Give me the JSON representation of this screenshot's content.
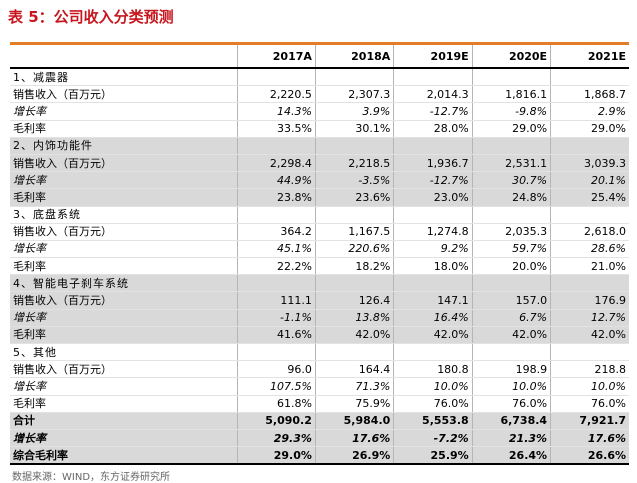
{
  "title": "表 5：公司收入分类预测",
  "columns": [
    "",
    "2017A",
    "2018A",
    "2019E",
    "2020E",
    "2021E"
  ],
  "rows": [
    {
      "type": "section",
      "shade": false,
      "label": "1、减震器",
      "values": [
        "",
        "",
        "",
        "",
        ""
      ]
    },
    {
      "type": "sales",
      "shade": false,
      "label": "销售收入（百万元）",
      "values": [
        "2,220.5",
        "2,307.3",
        "2,014.3",
        "1,816.1",
        "1,868.7"
      ]
    },
    {
      "type": "growth",
      "shade": false,
      "label": "增长率",
      "values": [
        "14.3%",
        "3.9%",
        "-12.7%",
        "-9.8%",
        "2.9%"
      ]
    },
    {
      "type": "margin",
      "shade": false,
      "label": "毛利率",
      "values": [
        "33.5%",
        "30.1%",
        "28.0%",
        "29.0%",
        "29.0%"
      ]
    },
    {
      "type": "section",
      "shade": true,
      "label": "2、内饰功能件",
      "values": [
        "",
        "",
        "",
        "",
        ""
      ]
    },
    {
      "type": "sales",
      "shade": true,
      "label": "销售收入（百万元）",
      "values": [
        "2,298.4",
        "2,218.5",
        "1,936.7",
        "2,531.1",
        "3,039.3"
      ]
    },
    {
      "type": "growth",
      "shade": true,
      "label": "增长率",
      "values": [
        "44.9%",
        "-3.5%",
        "-12.7%",
        "30.7%",
        "20.1%"
      ]
    },
    {
      "type": "margin",
      "shade": true,
      "label": "毛利率",
      "values": [
        "23.8%",
        "23.6%",
        "23.0%",
        "24.8%",
        "25.4%"
      ]
    },
    {
      "type": "section",
      "shade": false,
      "label": "3、底盘系统",
      "values": [
        "",
        "",
        "",
        "",
        ""
      ]
    },
    {
      "type": "sales",
      "shade": false,
      "label": "销售收入（百万元）",
      "values": [
        "364.2",
        "1,167.5",
        "1,274.8",
        "2,035.3",
        "2,618.0"
      ]
    },
    {
      "type": "growth",
      "shade": false,
      "label": "增长率",
      "values": [
        "45.1%",
        "220.6%",
        "9.2%",
        "59.7%",
        "28.6%"
      ]
    },
    {
      "type": "margin",
      "shade": false,
      "label": "毛利率",
      "values": [
        "22.2%",
        "18.2%",
        "18.0%",
        "20.0%",
        "21.0%"
      ]
    },
    {
      "type": "section",
      "shade": true,
      "label": "4、智能电子刹车系统",
      "values": [
        "",
        "",
        "",
        "",
        ""
      ]
    },
    {
      "type": "sales",
      "shade": true,
      "label": "销售收入（百万元）",
      "values": [
        "111.1",
        "126.4",
        "147.1",
        "157.0",
        "176.9"
      ]
    },
    {
      "type": "growth",
      "shade": true,
      "label": "增长率",
      "values": [
        "-1.1%",
        "13.8%",
        "16.4%",
        "6.7%",
        "12.7%"
      ]
    },
    {
      "type": "margin",
      "shade": true,
      "label": "毛利率",
      "values": [
        "41.6%",
        "42.0%",
        "42.0%",
        "42.0%",
        "42.0%"
      ]
    },
    {
      "type": "section",
      "shade": false,
      "label": "5、其他",
      "values": [
        "",
        "",
        "",
        "",
        ""
      ]
    },
    {
      "type": "sales",
      "shade": false,
      "label": "销售收入（百万元）",
      "values": [
        "96.0",
        "164.4",
        "180.8",
        "198.9",
        "218.8"
      ]
    },
    {
      "type": "growth",
      "shade": false,
      "label": "增长率",
      "values": [
        "107.5%",
        "71.3%",
        "10.0%",
        "10.0%",
        "10.0%"
      ]
    },
    {
      "type": "margin",
      "shade": false,
      "label": "毛利率",
      "values": [
        "61.8%",
        "75.9%",
        "76.0%",
        "76.0%",
        "76.0%"
      ]
    },
    {
      "type": "total",
      "shade": true,
      "label": "合计",
      "values": [
        "5,090.2",
        "5,984.0",
        "5,553.8",
        "6,738.4",
        "7,921.7"
      ]
    },
    {
      "type": "total-growth",
      "shade": true,
      "label": "增长率",
      "values": [
        "29.3%",
        "17.6%",
        "-7.2%",
        "21.3%",
        "17.6%"
      ]
    },
    {
      "type": "total-margin",
      "shade": true,
      "label": "综合毛利率",
      "values": [
        "29.0%",
        "26.9%",
        "25.9%",
        "26.4%",
        "26.6%"
      ]
    }
  ],
  "source": "数据来源：WIND，东方证券研究所"
}
